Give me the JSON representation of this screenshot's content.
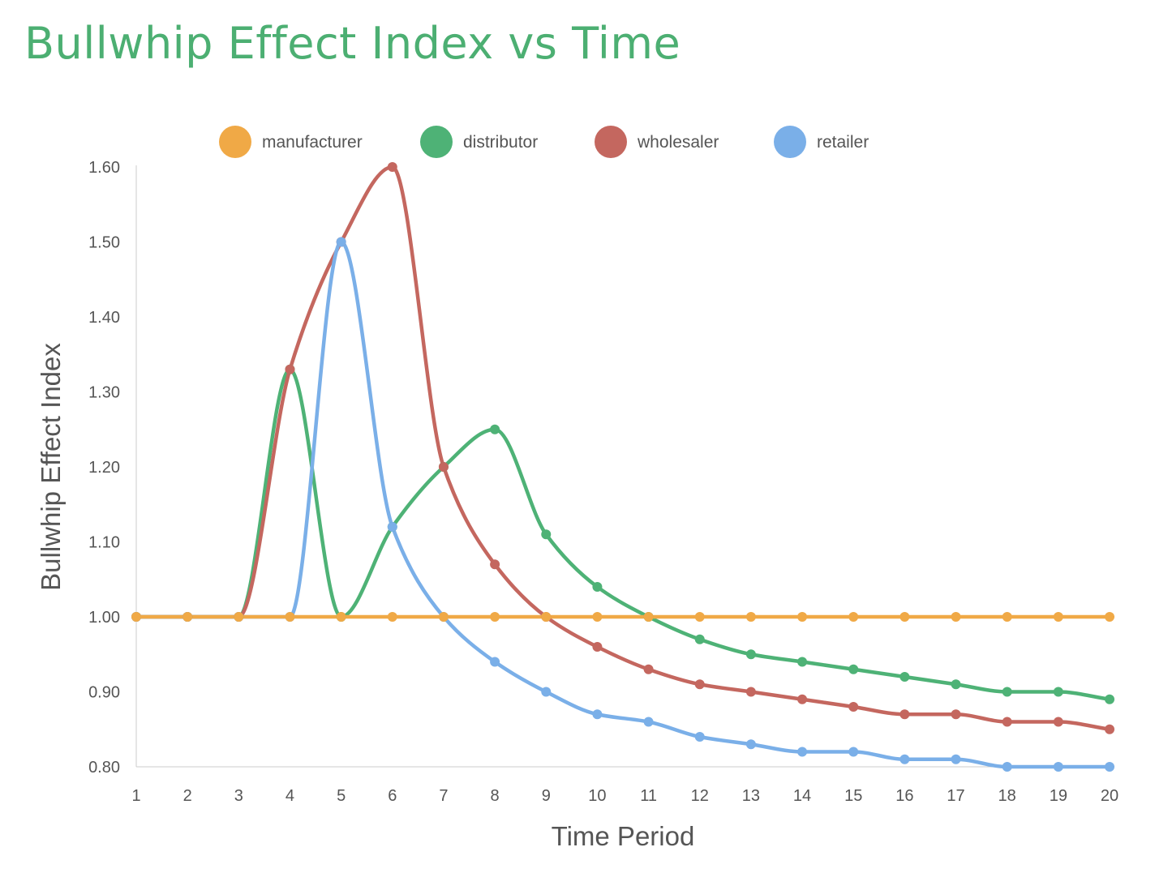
{
  "chart_data": {
    "type": "line",
    "title": "Bullwhip Effect Index vs Time",
    "xlabel": "Time Period",
    "ylabel": "Bullwhip Effect Index",
    "x": [
      1,
      2,
      3,
      4,
      5,
      6,
      7,
      8,
      9,
      10,
      11,
      12,
      13,
      14,
      15,
      16,
      17,
      18,
      19,
      20
    ],
    "ylim": [
      0.8,
      1.6
    ],
    "yticks": [
      "0.80",
      "0.90",
      "1.00",
      "1.10",
      "1.20",
      "1.30",
      "1.40",
      "1.50",
      "1.60"
    ],
    "yticks_values": [
      0.8,
      0.9,
      1.0,
      1.1,
      1.2,
      1.3,
      1.4,
      1.5,
      1.6
    ],
    "legend_position": "top",
    "grid": false,
    "series": [
      {
        "name": "manufacturer",
        "color": "#f0a946",
        "values": [
          1.0,
          1.0,
          1.0,
          1.0,
          1.0,
          1.0,
          1.0,
          1.0,
          1.0,
          1.0,
          1.0,
          1.0,
          1.0,
          1.0,
          1.0,
          1.0,
          1.0,
          1.0,
          1.0,
          1.0
        ]
      },
      {
        "name": "distributor",
        "color": "#4eb276",
        "values": [
          1.0,
          1.0,
          1.0,
          1.33,
          1.0,
          1.12,
          1.2,
          1.25,
          1.11,
          1.04,
          1.0,
          0.97,
          0.95,
          0.94,
          0.93,
          0.92,
          0.91,
          0.9,
          0.9,
          0.89
        ]
      },
      {
        "name": "wholesaler",
        "color": "#c4675f",
        "values": [
          1.0,
          1.0,
          1.0,
          1.33,
          1.5,
          1.6,
          1.2,
          1.07,
          1.0,
          0.96,
          0.93,
          0.91,
          0.9,
          0.89,
          0.88,
          0.87,
          0.87,
          0.86,
          0.86,
          0.85
        ]
      },
      {
        "name": "retailer",
        "color": "#7aafe8",
        "values": [
          1.0,
          1.0,
          1.0,
          1.0,
          1.5,
          1.12,
          1.0,
          0.94,
          0.9,
          0.87,
          0.86,
          0.84,
          0.83,
          0.82,
          0.82,
          0.81,
          0.81,
          0.8,
          0.8,
          0.8
        ]
      }
    ]
  }
}
